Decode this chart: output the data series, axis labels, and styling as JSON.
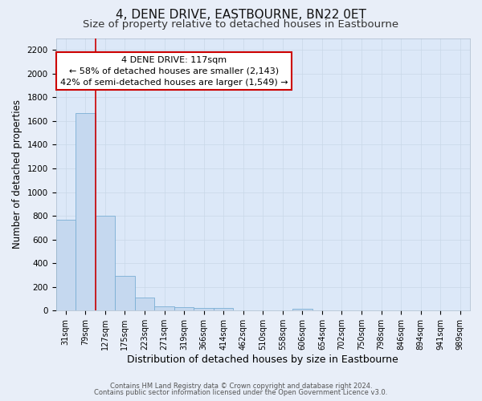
{
  "title": "4, DENE DRIVE, EASTBOURNE, BN22 0ET",
  "subtitle": "Size of property relative to detached houses in Eastbourne",
  "xlabel": "Distribution of detached houses by size in Eastbourne",
  "ylabel": "Number of detached properties",
  "categories": [
    "31sqm",
    "79sqm",
    "127sqm",
    "175sqm",
    "223sqm",
    "271sqm",
    "319sqm",
    "366sqm",
    "414sqm",
    "462sqm",
    "510sqm",
    "558sqm",
    "606sqm",
    "654sqm",
    "702sqm",
    "750sqm",
    "798sqm",
    "846sqm",
    "894sqm",
    "941sqm",
    "989sqm"
  ],
  "values": [
    770,
    1670,
    800,
    295,
    110,
    38,
    28,
    22,
    20,
    5,
    0,
    0,
    18,
    0,
    0,
    0,
    0,
    0,
    0,
    0,
    0
  ],
  "bar_color": "#c5d8ef",
  "bar_edge_color": "#7aafd4",
  "red_line_x": 1.5,
  "property_label": "4 DENE DRIVE: 117sqm",
  "annotation_line1": "← 58% of detached houses are smaller (2,143)",
  "annotation_line2": "42% of semi-detached houses are larger (1,549) →",
  "red_line_color": "#cc0000",
  "annotation_box_edge": "#cc0000",
  "ylim": [
    0,
    2300
  ],
  "yticks": [
    0,
    200,
    400,
    600,
    800,
    1000,
    1200,
    1400,
    1600,
    1800,
    2000,
    2200
  ],
  "grid_color": "#c8d8e8",
  "fig_bg_color": "#e8eef8",
  "plot_bg_color": "#dce8f8",
  "footnote1": "Contains HM Land Registry data © Crown copyright and database right 2024.",
  "footnote2": "Contains public sector information licensed under the Open Government Licence v3.0.",
  "title_fontsize": 11,
  "subtitle_fontsize": 9.5,
  "xlabel_fontsize": 9,
  "ylabel_fontsize": 8.5,
  "tick_fontsize": 7.5,
  "annotation_fontsize": 8,
  "footnote_fontsize": 6
}
